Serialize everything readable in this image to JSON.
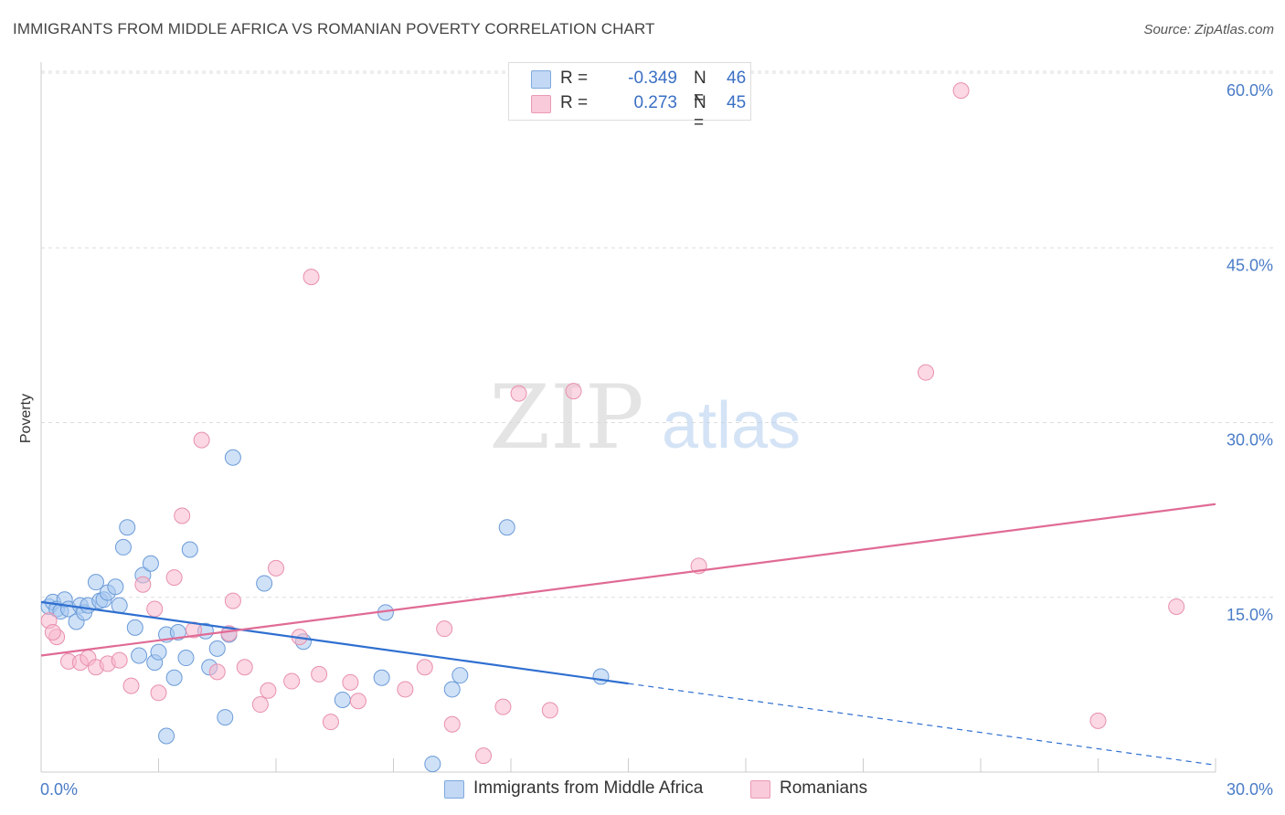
{
  "title": "IMMIGRANTS FROM MIDDLE AFRICA VS ROMANIAN POVERTY CORRELATION CHART",
  "source": "Source: ZipAtlas.com",
  "colors": {
    "blue_fill": "#a8c8f0",
    "blue_stroke": "#6b9bd8",
    "blue_line": "#2f6fd0",
    "pink_fill": "#f7b8cc",
    "pink_stroke": "#e890ad",
    "pink_line": "#e06b95",
    "axis_text": "#4a7cc7",
    "grid": "#dddddd"
  },
  "legend": {
    "rows": [
      {
        "r_label": "R =",
        "r_value": "-0.349",
        "n_label": "N =",
        "n_value": "46"
      },
      {
        "r_label": "R =",
        "r_value": "0.273",
        "n_label": "N =",
        "n_value": "45"
      }
    ]
  },
  "bottom_legend": {
    "series1": "Immigrants from Middle Africa",
    "series2": "Romanians"
  },
  "watermark": {
    "zip": "ZIP",
    "atlas": "atlas"
  },
  "chart_data": {
    "type": "scatter",
    "title": "IMMIGRANTS FROM MIDDLE AFRICA VS ROMANIAN POVERTY CORRELATION CHART",
    "xlabel": "",
    "ylabel": "Poverty",
    "xlim": [
      0,
      30
    ],
    "ylim": [
      0,
      63
    ],
    "x_tick_labels": [
      {
        "value": 0,
        "label": "0.0%"
      },
      {
        "value": 30,
        "label": "30.0%"
      }
    ],
    "x_minor_ticks": [
      3,
      6,
      9,
      12,
      15,
      18,
      21,
      24,
      27,
      30
    ],
    "y_ticks": [
      {
        "value": 15,
        "label": "15.0%"
      },
      {
        "value": 30,
        "label": "30.0%"
      },
      {
        "value": 45,
        "label": "45.0%"
      },
      {
        "value": 60,
        "label": "60.0%"
      }
    ],
    "grid": true,
    "series": [
      {
        "name": "Immigrants from Middle Africa",
        "color": "blue",
        "points": [
          [
            0.2,
            14.2
          ],
          [
            0.3,
            14.6
          ],
          [
            0.4,
            14.0
          ],
          [
            0.5,
            13.8
          ],
          [
            0.6,
            14.8
          ],
          [
            0.7,
            14.0
          ],
          [
            0.9,
            12.9
          ],
          [
            1.0,
            14.3
          ],
          [
            1.1,
            13.7
          ],
          [
            1.2,
            14.3
          ],
          [
            1.4,
            16.3
          ],
          [
            1.5,
            14.7
          ],
          [
            1.6,
            14.8
          ],
          [
            1.7,
            15.4
          ],
          [
            1.9,
            15.9
          ],
          [
            2.0,
            14.3
          ],
          [
            2.1,
            19.3
          ],
          [
            2.2,
            21.0
          ],
          [
            2.4,
            12.4
          ],
          [
            2.5,
            10.0
          ],
          [
            2.6,
            16.9
          ],
          [
            2.8,
            17.9
          ],
          [
            2.9,
            9.4
          ],
          [
            3.0,
            10.3
          ],
          [
            3.2,
            11.8
          ],
          [
            3.2,
            3.1
          ],
          [
            3.4,
            8.1
          ],
          [
            3.5,
            12.0
          ],
          [
            3.7,
            9.8
          ],
          [
            3.8,
            19.1
          ],
          [
            4.2,
            12.1
          ],
          [
            4.3,
            9.0
          ],
          [
            4.5,
            10.6
          ],
          [
            4.7,
            4.7
          ],
          [
            4.8,
            11.8
          ],
          [
            4.9,
            27.0
          ],
          [
            5.7,
            16.2
          ],
          [
            6.7,
            11.2
          ],
          [
            7.7,
            6.2
          ],
          [
            8.7,
            8.1
          ],
          [
            8.8,
            13.7
          ],
          [
            10.0,
            0.7
          ],
          [
            10.5,
            7.1
          ],
          [
            10.7,
            8.3
          ],
          [
            11.9,
            21.0
          ],
          [
            14.3,
            8.2
          ]
        ],
        "trendline": {
          "x": [
            0,
            15
          ],
          "y": [
            14.6,
            7.6
          ]
        },
        "trendline_dashed": {
          "x": [
            15,
            30
          ],
          "y": [
            7.6,
            0.6
          ]
        }
      },
      {
        "name": "Romanians",
        "color": "pink",
        "points": [
          [
            0.2,
            13.0
          ],
          [
            0.4,
            11.6
          ],
          [
            0.7,
            9.5
          ],
          [
            1.0,
            9.4
          ],
          [
            1.2,
            9.8
          ],
          [
            1.4,
            9.0
          ],
          [
            1.7,
            9.3
          ],
          [
            2.0,
            9.6
          ],
          [
            2.3,
            7.4
          ],
          [
            2.6,
            16.1
          ],
          [
            2.9,
            14.0
          ],
          [
            3.0,
            6.8
          ],
          [
            3.4,
            16.7
          ],
          [
            3.6,
            22.0
          ],
          [
            3.9,
            12.2
          ],
          [
            4.1,
            28.5
          ],
          [
            4.5,
            8.6
          ],
          [
            4.8,
            11.9
          ],
          [
            4.9,
            14.7
          ],
          [
            5.2,
            9.0
          ],
          [
            5.6,
            5.8
          ],
          [
            5.8,
            7.0
          ],
          [
            6.0,
            17.5
          ],
          [
            6.4,
            7.8
          ],
          [
            6.6,
            11.6
          ],
          [
            6.9,
            42.5
          ],
          [
            7.1,
            8.4
          ],
          [
            7.4,
            4.3
          ],
          [
            7.9,
            7.7
          ],
          [
            8.1,
            6.1
          ],
          [
            9.3,
            7.1
          ],
          [
            9.8,
            9.0
          ],
          [
            10.3,
            12.3
          ],
          [
            10.5,
            4.1
          ],
          [
            11.3,
            1.4
          ],
          [
            11.8,
            5.6
          ],
          [
            12.2,
            32.5
          ],
          [
            13.0,
            5.3
          ],
          [
            13.6,
            32.7
          ],
          [
            16.8,
            17.7
          ],
          [
            22.6,
            34.3
          ],
          [
            23.5,
            58.5
          ],
          [
            27.0,
            4.4
          ],
          [
            29.0,
            14.2
          ],
          [
            0.3,
            12.0
          ]
        ],
        "trendline": {
          "x": [
            0,
            30
          ],
          "y": [
            10.0,
            23.0
          ]
        }
      }
    ]
  }
}
